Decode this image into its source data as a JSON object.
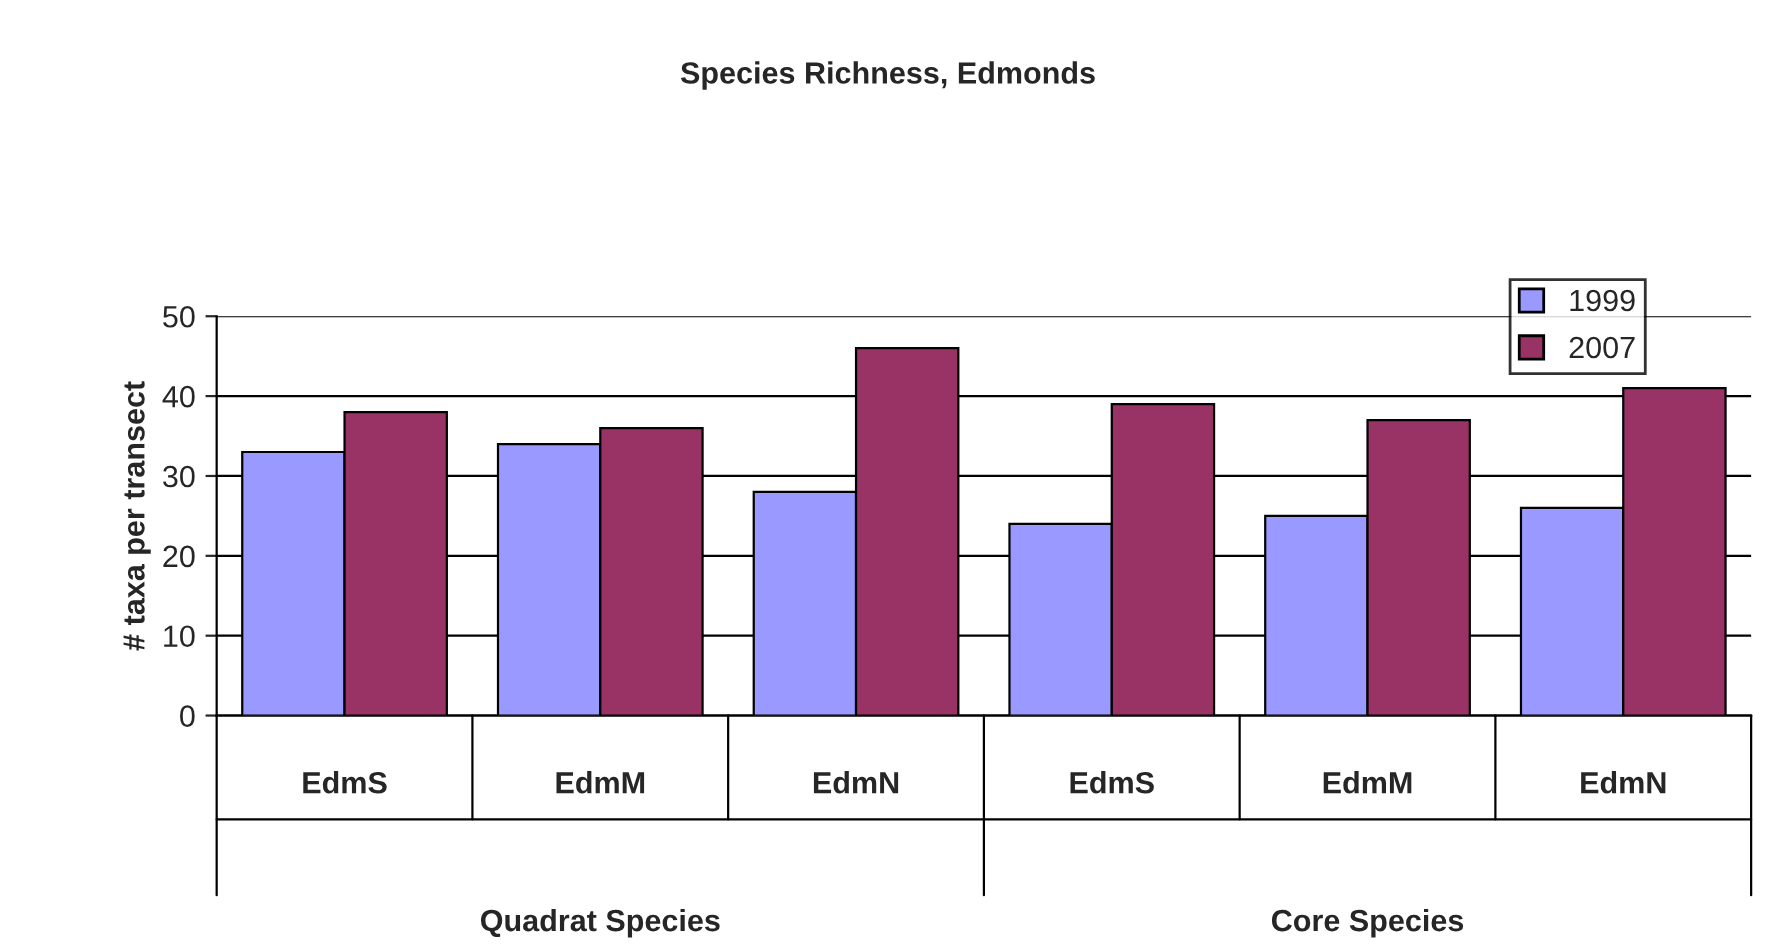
{
  "chart_data": {
    "type": "bar",
    "title": "Species Richness, Edmonds",
    "ylabel": "# taxa per transect",
    "categories": [
      "EdmS",
      "EdmM",
      "EdmN",
      "EdmS",
      "EdmM",
      "EdmN"
    ],
    "series": [
      {
        "name": "1999",
        "color": "#9999ff",
        "values": [
          33,
          34,
          28,
          24,
          25,
          26
        ]
      },
      {
        "name": "2007",
        "color": "#993366",
        "values": [
          38,
          36,
          46,
          39,
          37,
          41
        ]
      }
    ],
    "annotations": [
      "Quadrat Species",
      "Core Species"
    ],
    "ylim": [
      0,
      50
    ],
    "yticks": [
      0,
      10,
      20,
      30,
      40,
      50
    ],
    "grid": "y",
    "legend": "top right"
  }
}
